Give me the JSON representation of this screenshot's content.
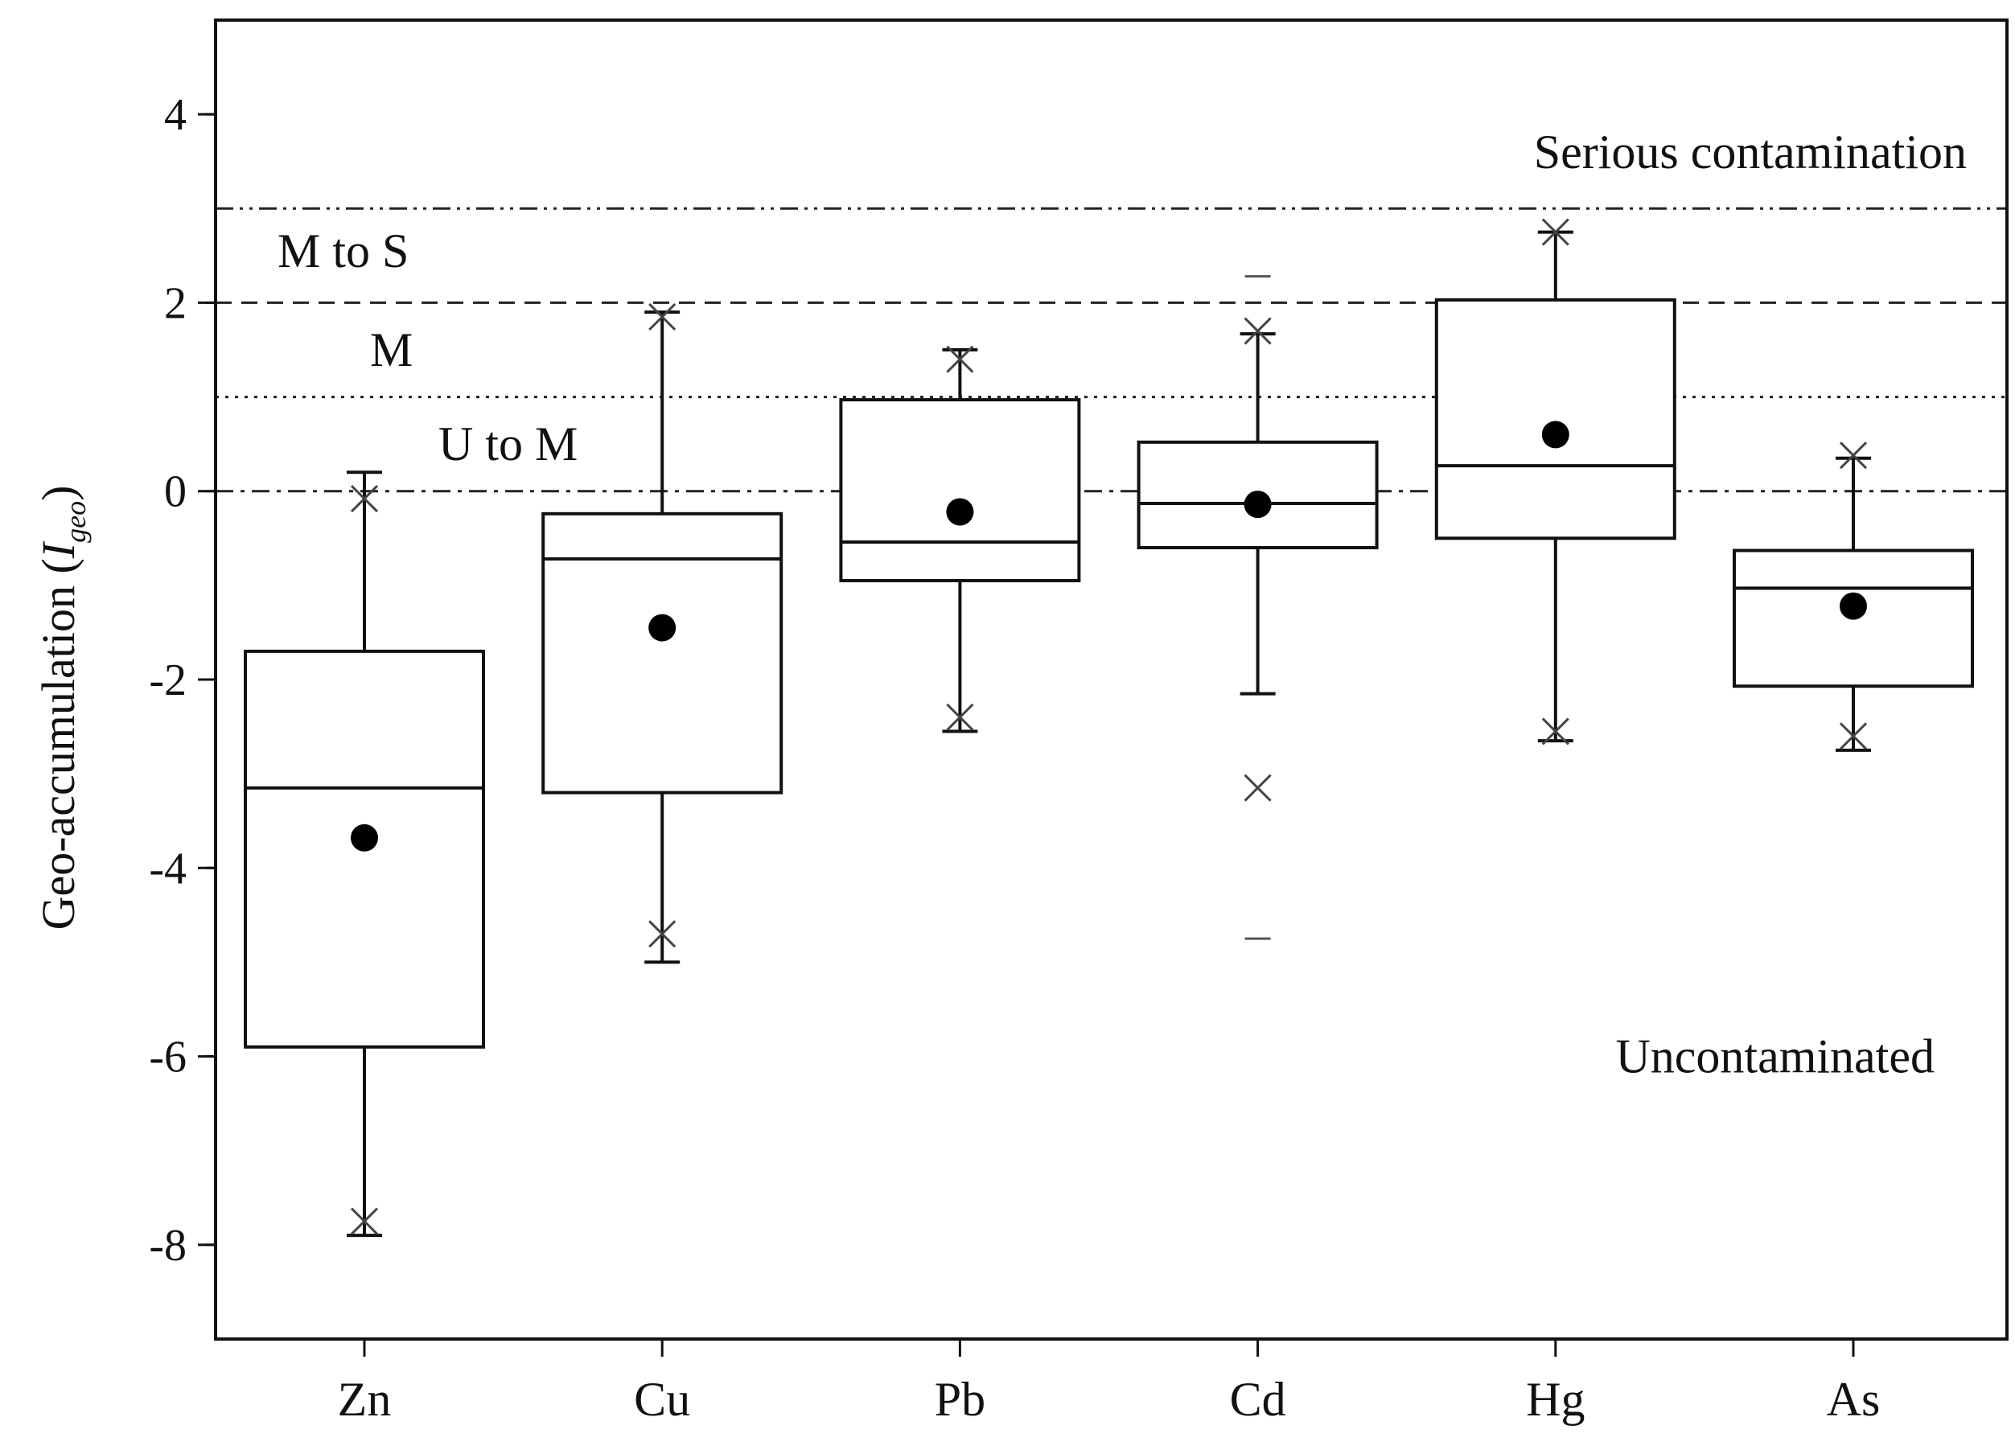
{
  "chart_data": {
    "type": "box",
    "title": "",
    "xlabel": "",
    "ylabel": "Geo-accumulation (",
    "ylabel_symbol": "I",
    "ylabel_subscript": "geo",
    "ylabel_close": ")",
    "ylim": [
      -9,
      5
    ],
    "y_ticks": [
      4,
      2,
      0,
      -2,
      -4,
      -6,
      -8
    ],
    "y_tick_labels": [
      "4",
      "2",
      "0",
      "-2",
      "-4",
      "-6",
      "-8"
    ],
    "grid": false,
    "categories": [
      "Zn",
      "Cu",
      "Pb",
      "Cd",
      "Hg",
      "As"
    ],
    "boxes": [
      {
        "category": "Zn",
        "whisker_low": -7.9,
        "q1": -5.9,
        "median": -3.15,
        "q3": -1.7,
        "whisker_high": 0.2,
        "mean": -3.68,
        "min_marker": -7.75,
        "max_marker": -0.08,
        "outliers": []
      },
      {
        "category": "Cu",
        "whisker_low": -5.0,
        "q1": -3.2,
        "median": -0.72,
        "q3": -0.24,
        "whisker_high": 1.9,
        "mean": -1.45,
        "min_marker": -4.7,
        "max_marker": 1.85,
        "outliers": []
      },
      {
        "category": "Pb",
        "whisker_low": -2.55,
        "q1": -0.95,
        "median": -0.54,
        "q3": 0.97,
        "whisker_high": 1.5,
        "mean": -0.22,
        "min_marker": -2.4,
        "max_marker": 1.4,
        "outliers": []
      },
      {
        "category": "Cd",
        "whisker_low": -2.15,
        "q1": -0.6,
        "median": -0.13,
        "q3": 0.52,
        "whisker_high": 1.67,
        "mean": -0.14,
        "min_marker": -3.15,
        "max_marker": 1.7,
        "outliers": [
          -4.75,
          2.28
        ]
      },
      {
        "category": "Hg",
        "whisker_low": -2.65,
        "q1": -0.5,
        "median": 0.27,
        "q3": 2.03,
        "whisker_high": 2.75,
        "mean": 0.6,
        "min_marker": -2.55,
        "max_marker": 2.75,
        "outliers": []
      },
      {
        "category": "As",
        "whisker_low": -2.75,
        "q1": -2.07,
        "median": -1.03,
        "q3": -0.63,
        "whisker_high": 0.35,
        "mean": -1.22,
        "min_marker": -2.6,
        "max_marker": 0.38,
        "outliers": []
      }
    ],
    "reference_lines": [
      {
        "y": 3,
        "style": "dash-dot-dot"
      },
      {
        "y": 2,
        "style": "dashed"
      },
      {
        "y": 1,
        "style": "dotted"
      },
      {
        "y": 0,
        "style": "dash-dot"
      }
    ],
    "zone_labels": [
      {
        "text": "Serious contamination",
        "y": 3.6
      },
      {
        "text": "M to S",
        "y": 2.55
      },
      {
        "text": "M",
        "y": 1.5
      },
      {
        "text": "U to M",
        "y": 0.5
      },
      {
        "text": "Unconta­minated",
        "y": -6.0
      }
    ]
  }
}
